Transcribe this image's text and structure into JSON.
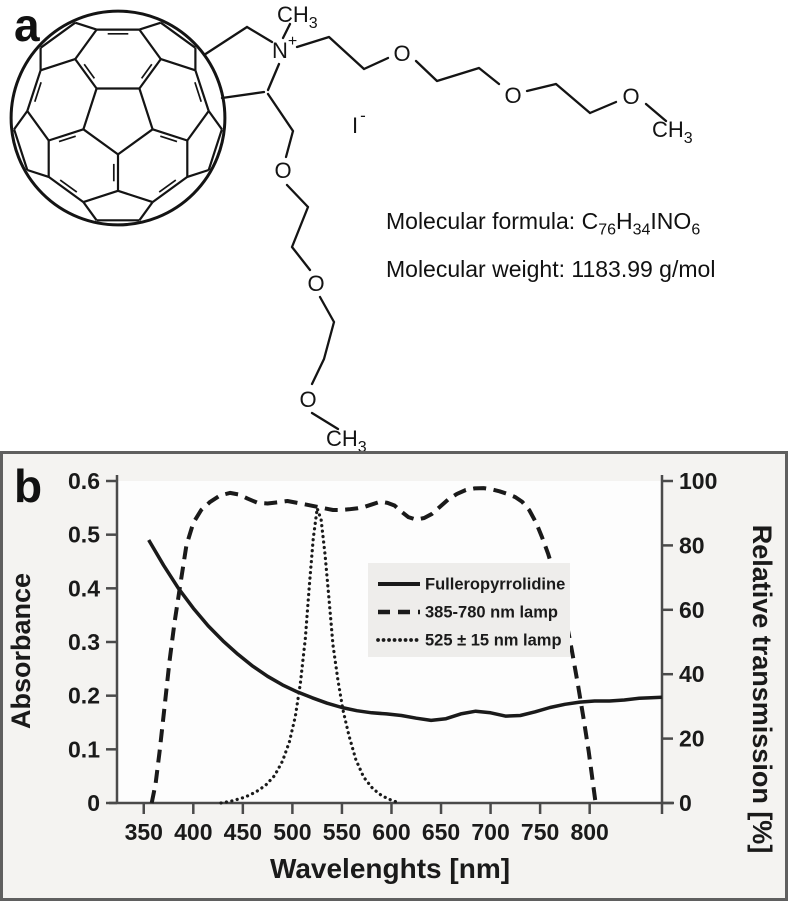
{
  "figure": {
    "panel_a_label": "a",
    "panel_b_label": "b"
  },
  "panel_a": {
    "molecule": {
      "n_methyl_text": "CH",
      "n_methyl_sub": "3",
      "nitrogen": "N",
      "nitrogen_charge": "+",
      "counterion": "I",
      "counterion_charge": "-",
      "ether_oxygen": "O",
      "chain_terminal_text": "CH",
      "chain_terminal_sub": "3"
    },
    "info": {
      "formula_prefix": "Molecular formula: ",
      "formula_c": "C",
      "formula_c_sub": "76",
      "formula_h": "H",
      "formula_h_sub": "34",
      "formula_ino": "INO",
      "formula_o_sub": "6",
      "weight_line": "Molecular weight: 1183.99 g/mol"
    }
  },
  "colors": {
    "ink": "#1a1a1a",
    "axis": "#4a4a4a",
    "border": "#5f5f5f",
    "panel_bg": "#f4f3f1",
    "plot_bg": "#fdfdfd",
    "legend_bg": "#eeedeb"
  },
  "chart_data": {
    "type": "line",
    "title": "",
    "xlabel": "Wavelenghts [nm]",
    "ylabel_left": "Absorbance",
    "ylabel_right": "Relative transmission [%]",
    "xlim": [
      323,
      873
    ],
    "ylim_left": [
      0,
      0.6
    ],
    "ylim_right": [
      0,
      100
    ],
    "x_ticks": [
      350,
      400,
      450,
      500,
      550,
      600,
      650,
      700,
      750,
      800
    ],
    "y_ticks_left": [
      0,
      0.1,
      0.2,
      0.3,
      0.4,
      0.5,
      0.6
    ],
    "y_ticks_right": [
      0,
      20,
      40,
      60,
      80,
      100
    ],
    "grid": false,
    "legend_position": "upper right inside",
    "series": [
      {
        "name": "Fulleropyrrolidine",
        "style": "solid",
        "axis": "left",
        "points": [
          [
            355,
            0.49
          ],
          [
            370,
            0.443
          ],
          [
            385,
            0.4
          ],
          [
            400,
            0.363
          ],
          [
            415,
            0.33
          ],
          [
            430,
            0.302
          ],
          [
            445,
            0.277
          ],
          [
            460,
            0.255
          ],
          [
            475,
            0.236
          ],
          [
            490,
            0.22
          ],
          [
            505,
            0.207
          ],
          [
            520,
            0.196
          ],
          [
            535,
            0.186
          ],
          [
            550,
            0.178
          ],
          [
            565,
            0.172
          ],
          [
            580,
            0.168
          ],
          [
            595,
            0.166
          ],
          [
            610,
            0.163
          ],
          [
            625,
            0.158
          ],
          [
            640,
            0.154
          ],
          [
            655,
            0.157
          ],
          [
            670,
            0.166
          ],
          [
            685,
            0.171
          ],
          [
            700,
            0.168
          ],
          [
            715,
            0.162
          ],
          [
            730,
            0.163
          ],
          [
            745,
            0.17
          ],
          [
            760,
            0.178
          ],
          [
            775,
            0.184
          ],
          [
            790,
            0.188
          ],
          [
            805,
            0.19
          ],
          [
            820,
            0.19
          ],
          [
            835,
            0.192
          ],
          [
            850,
            0.195
          ],
          [
            862,
            0.196
          ],
          [
            873,
            0.197
          ]
        ]
      },
      {
        "name": "385-780 nm lamp",
        "style": "dashed",
        "axis": "right",
        "points": [
          [
            358,
            0
          ],
          [
            362,
            6
          ],
          [
            366,
            16
          ],
          [
            371,
            30
          ],
          [
            376,
            44
          ],
          [
            381,
            56
          ],
          [
            387,
            68
          ],
          [
            393,
            80
          ],
          [
            400,
            87
          ],
          [
            408,
            91
          ],
          [
            417,
            93.5
          ],
          [
            427,
            95.5
          ],
          [
            437,
            96.3
          ],
          [
            446,
            95.8
          ],
          [
            455,
            94.5
          ],
          [
            465,
            93.2
          ],
          [
            475,
            93
          ],
          [
            485,
            93.4
          ],
          [
            495,
            93.8
          ],
          [
            505,
            93.2
          ],
          [
            515,
            92.6
          ],
          [
            525,
            92
          ],
          [
            533,
            91.5
          ],
          [
            541,
            91
          ],
          [
            549,
            91
          ],
          [
            557,
            91.2
          ],
          [
            565,
            91.5
          ],
          [
            573,
            92
          ],
          [
            581,
            92.8
          ],
          [
            589,
            93.6
          ],
          [
            596,
            93.2
          ],
          [
            603,
            92.4
          ],
          [
            610,
            90.5
          ],
          [
            617,
            88.8
          ],
          [
            625,
            88
          ],
          [
            633,
            88.5
          ],
          [
            641,
            89.8
          ],
          [
            649,
            92
          ],
          [
            657,
            94.2
          ],
          [
            666,
            96
          ],
          [
            675,
            97.2
          ],
          [
            684,
            97.7
          ],
          [
            693,
            97.8
          ],
          [
            701,
            97.4
          ],
          [
            709,
            96.8
          ],
          [
            717,
            96
          ],
          [
            725,
            95
          ],
          [
            732,
            93.5
          ],
          [
            739,
            91
          ],
          [
            746,
            87
          ],
          [
            752,
            82.5
          ],
          [
            758,
            77.5
          ],
          [
            764,
            71.5
          ],
          [
            770,
            65
          ],
          [
            776,
            57
          ],
          [
            782,
            47.5
          ],
          [
            788,
            37
          ],
          [
            794,
            26
          ],
          [
            799,
            16
          ],
          [
            803,
            7
          ],
          [
            806,
            0
          ]
        ]
      },
      {
        "name": "525 ± 15 nm lamp",
        "style": "dotted",
        "axis": "right",
        "points": [
          [
            428,
            0
          ],
          [
            440,
            0.7
          ],
          [
            452,
            1.8
          ],
          [
            463,
            3.4
          ],
          [
            473,
            5.5
          ],
          [
            482,
            8.5
          ],
          [
            490,
            13
          ],
          [
            497,
            19
          ],
          [
            503,
            27
          ],
          [
            508,
            37
          ],
          [
            513,
            51
          ],
          [
            517,
            67
          ],
          [
            521,
            82
          ],
          [
            525,
            91.5
          ],
          [
            529,
            88
          ],
          [
            533,
            77
          ],
          [
            537,
            63
          ],
          [
            541,
            49
          ],
          [
            546,
            38
          ],
          [
            551,
            29
          ],
          [
            557,
            21
          ],
          [
            564,
            13.5
          ],
          [
            572,
            8
          ],
          [
            581,
            4.5
          ],
          [
            590,
            2.3
          ],
          [
            599,
            1
          ],
          [
            608,
            0
          ]
        ]
      }
    ]
  }
}
